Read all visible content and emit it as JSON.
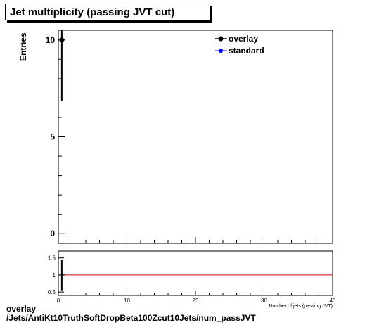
{
  "chart_data": [
    {
      "type": "scatter",
      "title": "Jet multiplicity (passing JVT cut)",
      "ylabel": "Entries",
      "xlim": [
        0,
        40
      ],
      "ylim": [
        -0.5,
        10.5
      ],
      "yticks": [
        0,
        5,
        10
      ],
      "legend_position": "top-right",
      "series": [
        {
          "name": "overlay",
          "color": "#000000",
          "marker": "circle",
          "points": [
            {
              "x": 0.5,
              "y": 10,
              "yerr": 3.16
            }
          ]
        },
        {
          "name": "standard",
          "color": "#0000ff",
          "marker": "circle",
          "points": []
        }
      ]
    },
    {
      "type": "line",
      "xlabel": "Number of jets (passing JVT)",
      "xlim": [
        0,
        40
      ],
      "ylim": [
        0.4,
        1.7
      ],
      "xticks": [
        0,
        10,
        20,
        30,
        40
      ],
      "yticks": [
        0.5,
        1,
        1.5
      ],
      "ytick_labels": [
        "0.5",
        "1",
        "1.5"
      ],
      "reference_line": {
        "y": 1,
        "color": "#cc0000"
      },
      "points": [
        {
          "x": 0.5,
          "y": 1,
          "yerr": 0.45
        }
      ]
    }
  ],
  "footer": {
    "line1": "overlay",
    "line2": "/Jets/AntiKt10TruthSoftDropBeta100Zcut10Jets/num_passJVT"
  }
}
